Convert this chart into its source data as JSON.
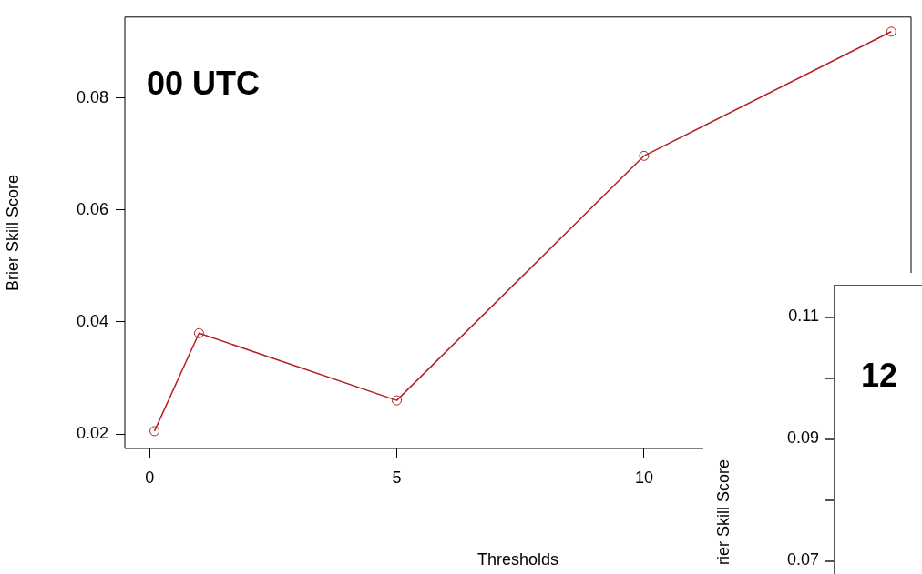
{
  "chart_data": [
    {
      "type": "line",
      "xlabel": "Thresholds",
      "ylabel": "Brier Skill Score",
      "annotations": [
        "00 UTC"
      ],
      "x": [
        0.1,
        1,
        5,
        10,
        15
      ],
      "series": [
        {
          "color": "#b22222",
          "values": [
            0.0205,
            0.038,
            0.026,
            0.0697,
            0.0919
          ]
        }
      ],
      "marker": "circle",
      "xlim": [
        -0.5,
        15.4
      ],
      "ylim": [
        0.0174,
        0.0945
      ],
      "xticks": [
        0,
        5,
        10
      ],
      "yticks": [
        0.02,
        0.04,
        0.06,
        0.08
      ],
      "grid": false
    },
    {
      "type": "other",
      "ylabel": "rier Skill Score",
      "annotations": [
        "12",
        "0.11",
        "0.09",
        "0.07"
      ]
    }
  ]
}
